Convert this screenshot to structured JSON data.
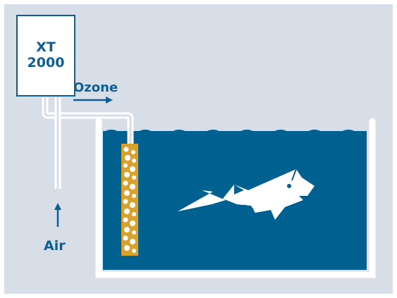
{
  "generator": {
    "label_line1": "XT",
    "label_line2": "2000"
  },
  "labels": {
    "ozone": "Ozone",
    "air": "Air"
  },
  "colors": {
    "background": "#d8dee8",
    "water": "#00608f",
    "navy": "#0f5e92",
    "diffuser": "#d9a12d",
    "white": "#ffffff"
  },
  "icons": {
    "fish": "fish-icon",
    "ozone_arrow": "right-arrow-icon",
    "air_arrow": "up-arrow-icon"
  }
}
